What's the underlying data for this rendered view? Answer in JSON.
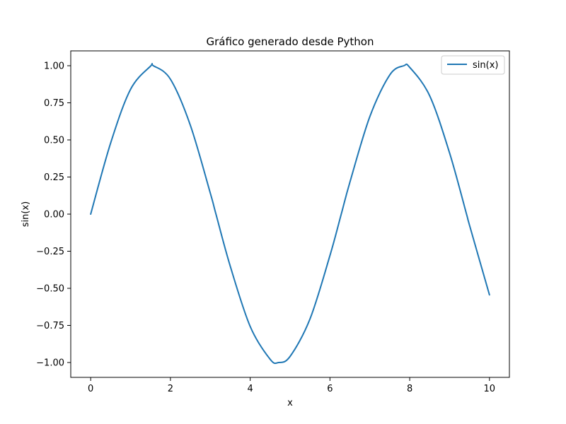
{
  "chart_data": {
    "type": "line",
    "title": "Gráfico generado desde Python",
    "xlabel": "x",
    "ylabel": "sin(x)",
    "xlim": [
      -0.5,
      10.5
    ],
    "ylim": [
      -1.1,
      1.1
    ],
    "xticks": [
      0,
      2,
      4,
      6,
      8,
      10
    ],
    "xtick_labels": [
      "0",
      "2",
      "4",
      "6",
      "8",
      "10"
    ],
    "yticks": [
      -1.0,
      -0.75,
      -0.5,
      -0.25,
      0.0,
      0.25,
      0.5,
      0.75,
      1.0
    ],
    "ytick_labels": [
      "−1.00",
      "−0.75",
      "−0.50",
      "−0.25",
      "0.00",
      "0.25",
      "0.50",
      "0.75",
      "1.00"
    ],
    "grid": false,
    "legend_position": "top-right",
    "colors": {
      "series": "#1f77b4",
      "axes": "#000000",
      "legend_border": "#cccccc"
    },
    "series": [
      {
        "name": "sin(x)",
        "x": [
          0,
          0.5,
          1.0,
          1.5,
          1.5708,
          2.0,
          2.5,
          3.0,
          3.1416,
          3.5,
          4.0,
          4.5,
          4.7124,
          5.0,
          5.5,
          6.0,
          6.2832,
          6.5,
          7.0,
          7.5,
          7.854,
          8.0,
          8.5,
          9.0,
          9.4248,
          9.5,
          10.0
        ],
        "y": [
          0.0,
          0.479,
          0.841,
          0.997,
          1.0,
          0.909,
          0.598,
          0.141,
          0.0,
          -0.351,
          -0.757,
          -0.978,
          -1.0,
          -0.959,
          -0.706,
          -0.279,
          0.0,
          0.215,
          0.657,
          0.938,
          1.0,
          0.989,
          0.798,
          0.412,
          0.0,
          -0.075,
          -0.544
        ]
      }
    ]
  }
}
